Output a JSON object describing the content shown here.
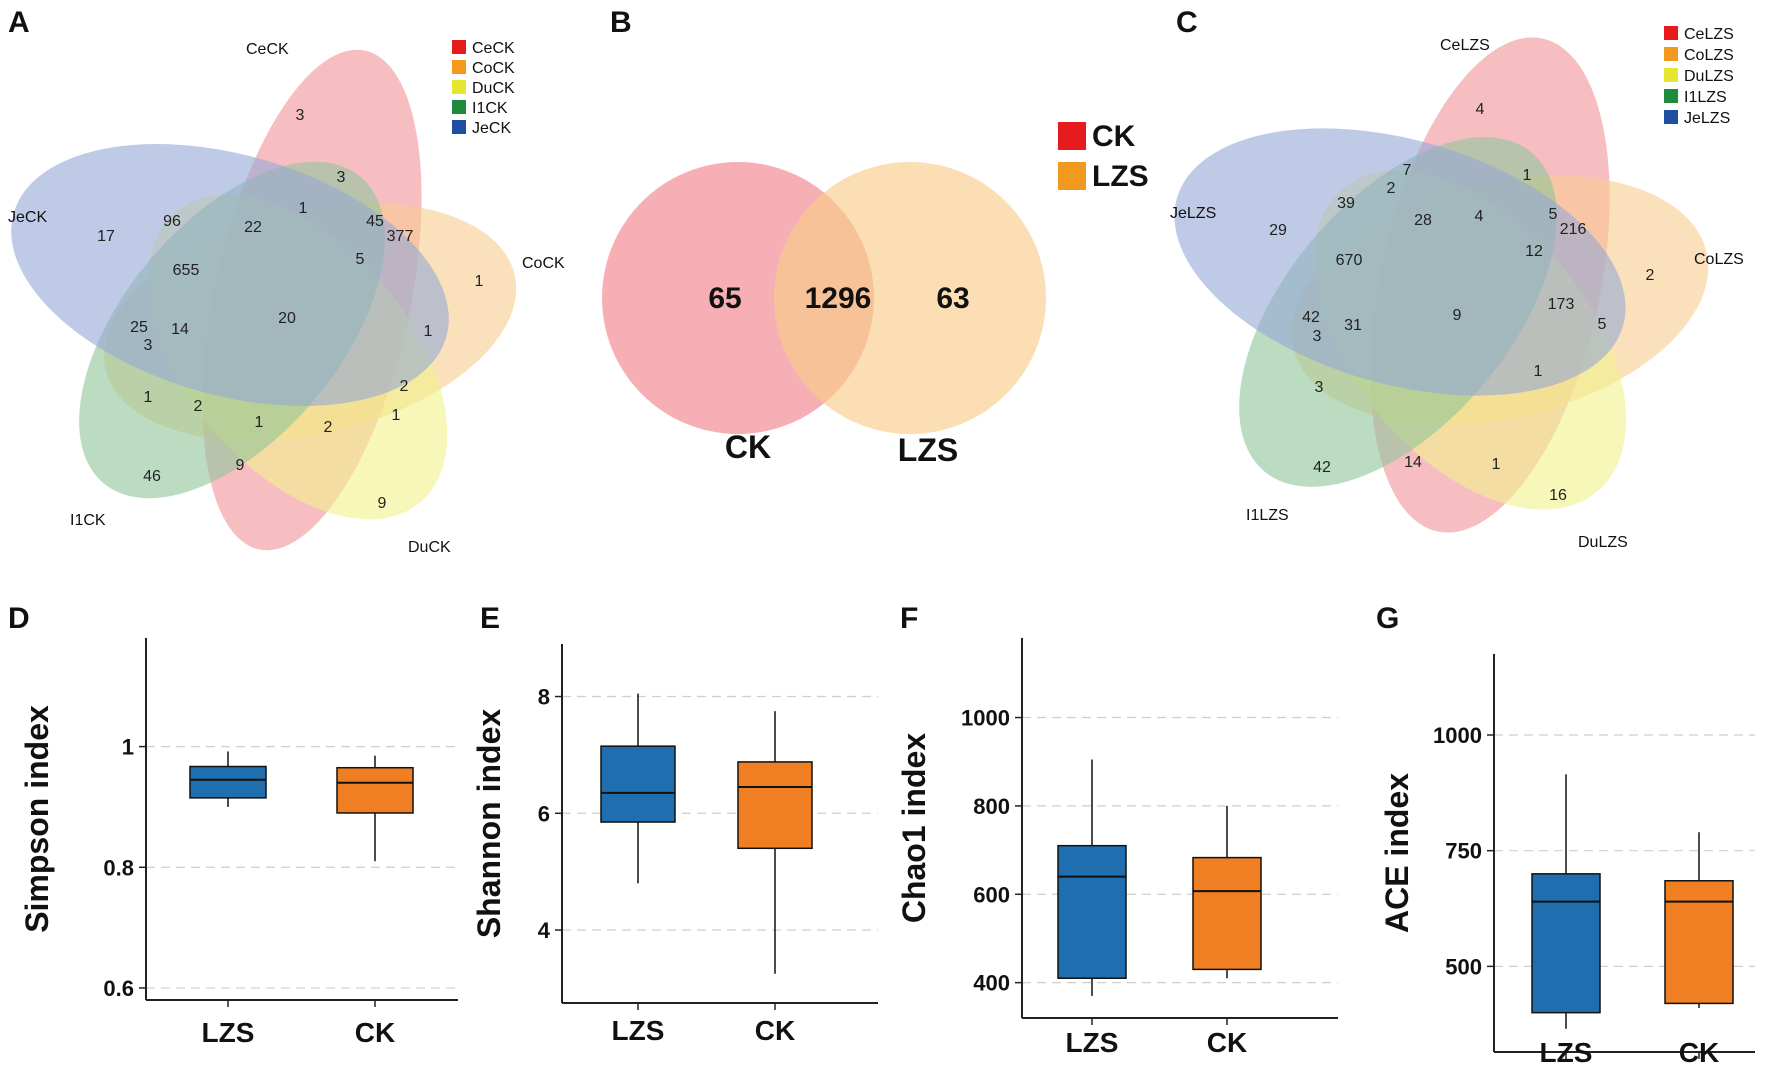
{
  "panels": {
    "A": {
      "label": "A",
      "type": "venn5",
      "sets": [
        "CeCK",
        "CoCK",
        "DuCK",
        "I1CK",
        "JeCK"
      ],
      "colors": [
        "#e41a1c",
        "#f39a1e",
        "#e6e632",
        "#1e8a3c",
        "#1f4e9e"
      ],
      "fills": [
        "#f4a3a8",
        "#f9cc90",
        "#f1f18c",
        "#8fc49a",
        "#94a8d6"
      ],
      "region_counts": [
        "3",
        "3",
        "1",
        "45",
        "377",
        "17",
        "96",
        "22",
        "655",
        "5",
        "20",
        "1",
        "1",
        "25",
        "14",
        "3",
        "1",
        "2",
        "1",
        "2",
        "1",
        "2",
        "9",
        "46",
        "9"
      ]
    },
    "B": {
      "label": "B",
      "type": "venn2",
      "sets": [
        "CK",
        "LZS"
      ],
      "legend": [
        "CK",
        "LZS"
      ],
      "legend_colors": [
        "#e41a1c",
        "#f39a1e"
      ],
      "fills": [
        "#f28f96",
        "#f9cc8a"
      ],
      "counts": {
        "CK_only": "65",
        "shared": "1296",
        "LZS_only": "63"
      }
    },
    "C": {
      "label": "C",
      "type": "venn5",
      "sets": [
        "CeLZS",
        "CoLZS",
        "DuLZS",
        "I1LZS",
        "JeLZS"
      ],
      "colors": [
        "#e41a1c",
        "#f39a1e",
        "#e6e632",
        "#1e8a3c",
        "#1f4e9e"
      ],
      "fills": [
        "#f4a3a8",
        "#f9cc90",
        "#f1f18c",
        "#8fc49a",
        "#94a8d6"
      ],
      "region_counts": [
        "4",
        "7",
        "2",
        "1",
        "39",
        "28",
        "4",
        "5",
        "216",
        "29",
        "670",
        "12",
        "2",
        "9",
        "173",
        "42",
        "3",
        "31",
        "5",
        "1",
        "3",
        "42",
        "14",
        "1",
        "16"
      ]
    }
  },
  "chart_data": [
    {
      "panel": "D",
      "type": "box",
      "ylabel": "Simpson index",
      "categories": [
        "LZS",
        "CK"
      ],
      "ylim": [
        0.58,
        1.18
      ],
      "yticks": [
        0.6,
        0.8,
        1
      ],
      "ytick_labels": [
        "0.6",
        "0.8",
        "1"
      ],
      "colors": [
        "#1f6fb0",
        "#ef7f22"
      ],
      "boxes": [
        {
          "name": "LZS",
          "min": 0.9,
          "q1": 0.915,
          "median": 0.945,
          "q3": 0.967,
          "max": 0.992
        },
        {
          "name": "CK",
          "min": 0.81,
          "q1": 0.89,
          "median": 0.94,
          "q3": 0.965,
          "max": 0.985
        }
      ]
    },
    {
      "panel": "E",
      "type": "box",
      "ylabel": "Shannon index",
      "categories": [
        "LZS",
        "CK"
      ],
      "ylim": [
        2.75,
        8.9
      ],
      "yticks": [
        4,
        6,
        8
      ],
      "ytick_labels": [
        "4",
        "6",
        "8"
      ],
      "colors": [
        "#1f6fb0",
        "#ef7f22"
      ],
      "boxes": [
        {
          "name": "LZS",
          "min": 4.8,
          "q1": 5.85,
          "median": 6.35,
          "q3": 7.15,
          "max": 8.05
        },
        {
          "name": "CK",
          "min": 3.25,
          "q1": 5.4,
          "median": 6.45,
          "q3": 6.88,
          "max": 7.75
        }
      ]
    },
    {
      "panel": "F",
      "type": "box",
      "ylabel": "Chao1 index",
      "categories": [
        "LZS",
        "CK"
      ],
      "ylim": [
        320,
        1180
      ],
      "yticks": [
        400,
        600,
        800,
        1000
      ],
      "ytick_labels": [
        "400",
        "600",
        "800",
        "1000"
      ],
      "colors": [
        "#1f6fb0",
        "#ef7f22"
      ],
      "boxes": [
        {
          "name": "LZS",
          "min": 370,
          "q1": 410,
          "median": 640,
          "q3": 710,
          "max": 905
        },
        {
          "name": "CK",
          "min": 410,
          "q1": 430,
          "median": 607,
          "q3": 683,
          "max": 800
        }
      ]
    },
    {
      "panel": "G",
      "type": "box",
      "ylabel": "ACE index",
      "categories": [
        "LZS",
        "CK"
      ],
      "ylim": [
        315,
        1175
      ],
      "yticks": [
        500,
        750,
        1000
      ],
      "ytick_labels": [
        "500",
        "750",
        "1000"
      ],
      "colors": [
        "#1f6fb0",
        "#ef7f22"
      ],
      "boxes": [
        {
          "name": "LZS",
          "min": 365,
          "q1": 400,
          "median": 640,
          "q3": 700,
          "max": 915
        },
        {
          "name": "CK",
          "min": 410,
          "q1": 420,
          "median": 640,
          "q3": 685,
          "max": 790
        }
      ]
    }
  ]
}
